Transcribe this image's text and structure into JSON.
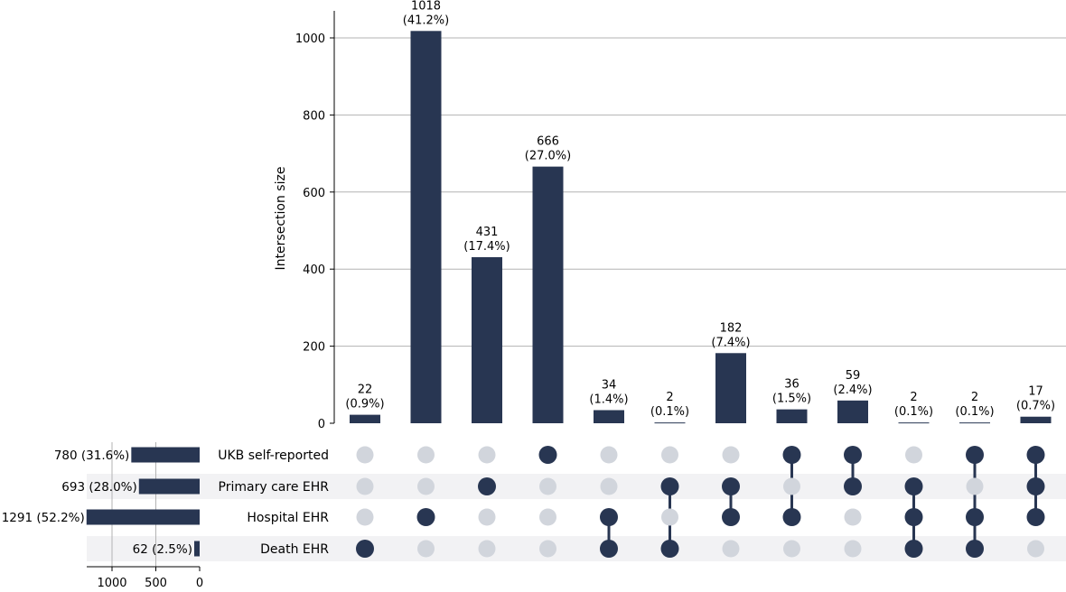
{
  "chart_data": {
    "type": "bar",
    "subtype": "upset",
    "ylabel": "Intersection size",
    "ylim": [
      0,
      1070
    ],
    "yticks": [
      0,
      200,
      400,
      600,
      800,
      1000
    ],
    "grid": true,
    "colors": {
      "bar": "#283652",
      "dot_active": "#283652",
      "dot_inactive": "#d1d5dc",
      "row_shade": "#f2f2f4",
      "grid": "#b3b3b3"
    },
    "sets": [
      {
        "name": "UKB self-reported",
        "size": 780,
        "label": "780 (31.6%)"
      },
      {
        "name": "Primary care EHR",
        "size": 693,
        "label": "693 (28.0%)"
      },
      {
        "name": "Hospital EHR",
        "size": 1291,
        "label": "1291 (52.2%)"
      },
      {
        "name": "Death EHR",
        "size": 62,
        "label": "62 (2.5%)"
      }
    ],
    "set_size_axis": {
      "ticks": [
        1000,
        500,
        0
      ],
      "max": 1291
    },
    "intersections": [
      {
        "value": 22,
        "count_label": "22",
        "pct_label": "(0.9%)",
        "members": [
          3
        ]
      },
      {
        "value": 1018,
        "count_label": "1018",
        "pct_label": "(41.2%)",
        "members": [
          2
        ]
      },
      {
        "value": 431,
        "count_label": "431",
        "pct_label": "(17.4%)",
        "members": [
          1
        ]
      },
      {
        "value": 666,
        "count_label": "666",
        "pct_label": "(27.0%)",
        "members": [
          0
        ]
      },
      {
        "value": 34,
        "count_label": "34",
        "pct_label": "(1.4%)",
        "members": [
          2,
          3
        ]
      },
      {
        "value": 2,
        "count_label": "2",
        "pct_label": "(0.1%)",
        "members": [
          1,
          3
        ]
      },
      {
        "value": 182,
        "count_label": "182",
        "pct_label": "(7.4%)",
        "members": [
          1,
          2
        ]
      },
      {
        "value": 36,
        "count_label": "36",
        "pct_label": "(1.5%)",
        "members": [
          0,
          2
        ]
      },
      {
        "value": 59,
        "count_label": "59",
        "pct_label": "(2.4%)",
        "members": [
          0,
          1
        ]
      },
      {
        "value": 2,
        "count_label": "2",
        "pct_label": "(0.1%)",
        "members": [
          1,
          2,
          3
        ]
      },
      {
        "value": 2,
        "count_label": "2",
        "pct_label": "(0.1%)",
        "members": [
          0,
          2,
          3
        ]
      },
      {
        "value": 17,
        "count_label": "17",
        "pct_label": "(0.7%)",
        "members": [
          0,
          1,
          2
        ]
      }
    ]
  }
}
